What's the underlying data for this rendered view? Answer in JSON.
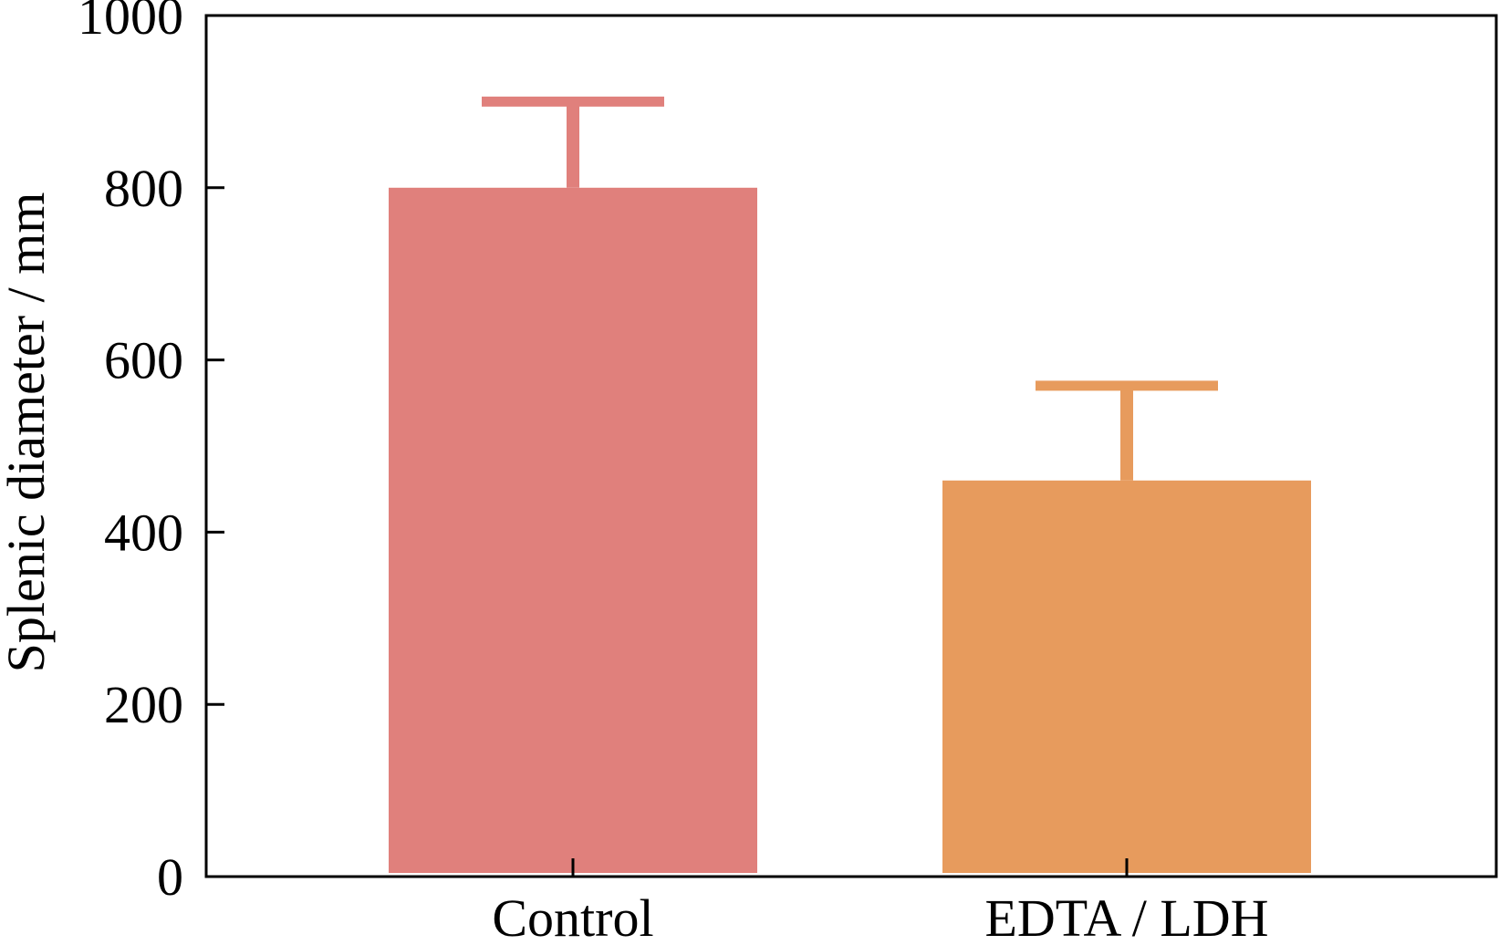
{
  "chart_data": {
    "type": "bar",
    "title": "",
    "xlabel": "",
    "ylabel": "Splenic diameter / mm",
    "categories": [
      "Control",
      "EDTA / LDH"
    ],
    "values": [
      800,
      460
    ],
    "error_upper": [
      100,
      110
    ],
    "ylim": [
      0,
      1000
    ],
    "yticks": [
      0,
      200,
      400,
      600,
      800,
      1000
    ],
    "grid": false,
    "legend": "none",
    "colors": [
      "#e0807c",
      "#e79b5d"
    ]
  }
}
